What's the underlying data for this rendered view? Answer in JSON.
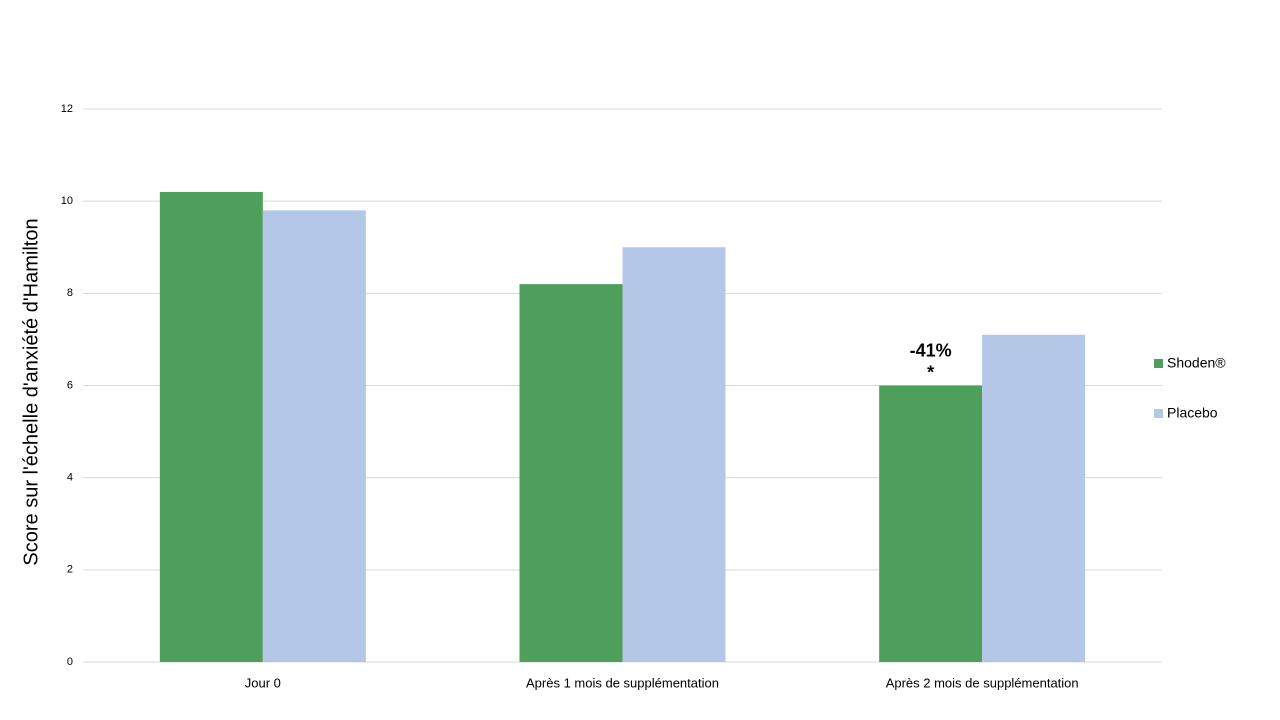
{
  "chart_data": {
    "type": "bar",
    "y_label": "Score sur l'échelle d'anxiété d'Hamilton",
    "categories": [
      "Jour 0",
      "Après 1 mois de supplémentation",
      "Après 2 mois de supplémentation"
    ],
    "series": [
      {
        "name": "Shoden®",
        "color": "#4e9e5c",
        "values": [
          10.2,
          8.2,
          6.0
        ]
      },
      {
        "name": "Placebo",
        "color": "#b4c7e7",
        "values": [
          9.8,
          9.0,
          7.1
        ]
      }
    ],
    "annotations": [
      "-41%",
      "*"
    ],
    "ylim": [
      0,
      12
    ],
    "yticks": [
      0,
      2,
      4,
      6,
      8,
      10,
      12
    ],
    "grid": true,
    "legend": "right"
  }
}
